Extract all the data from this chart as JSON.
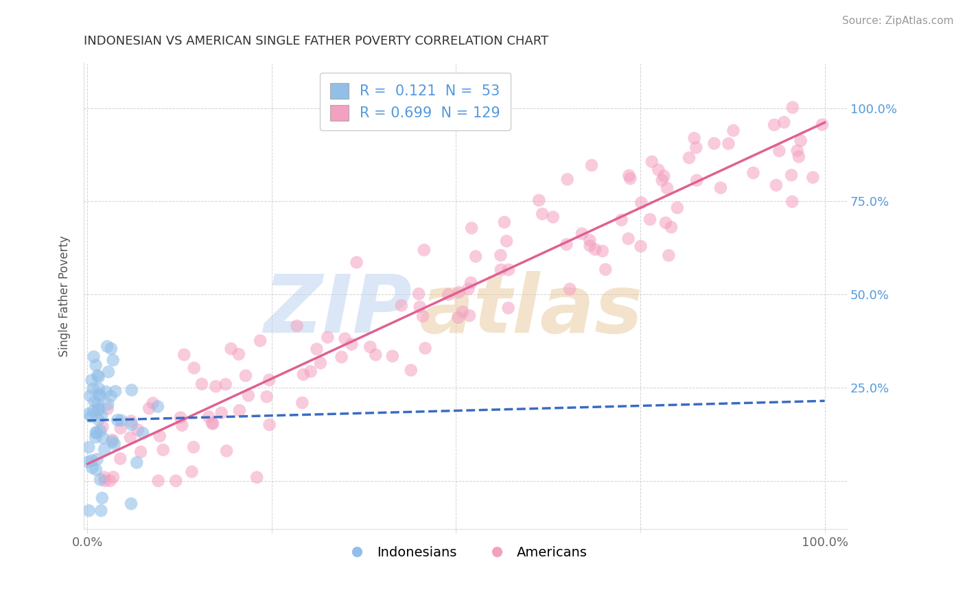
{
  "title": "INDONESIAN VS AMERICAN SINGLE FATHER POVERTY CORRELATION CHART",
  "source": "Source: ZipAtlas.com",
  "ylabel": "Single Father Poverty",
  "blue_R": 0.121,
  "blue_N": 53,
  "pink_R": 0.699,
  "pink_N": 129,
  "blue_color": "#92BFE8",
  "pink_color": "#F4A0C0",
  "blue_line_color": "#3A6BC4",
  "pink_line_color": "#E06090",
  "accent_color": "#5599DD",
  "legend_label_blue": "Indonesians",
  "legend_label_pink": "Americans"
}
